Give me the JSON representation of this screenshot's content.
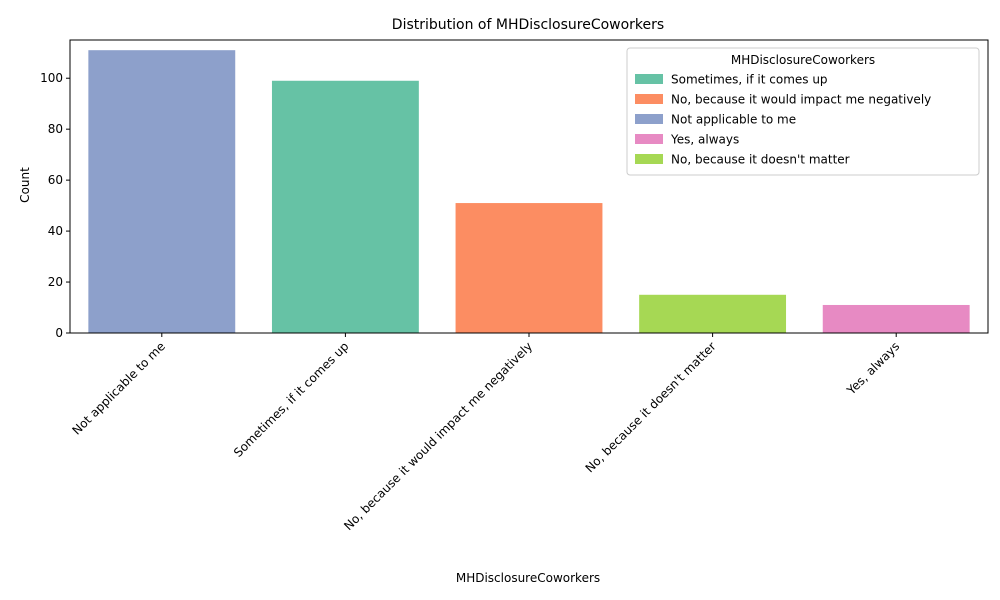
{
  "chart_data": {
    "type": "bar",
    "title": "Distribution of MHDisclosureCoworkers",
    "xlabel": "MHDisclosureCoworkers",
    "ylabel": "Count",
    "ylim": [
      0,
      115
    ],
    "yticks": [
      0,
      20,
      40,
      60,
      80,
      100
    ],
    "categories": [
      "Not applicable to me",
      "Sometimes, if it comes up",
      "No, because it would impact me negatively",
      "No, because it doesn't matter",
      "Yes, always"
    ],
    "values": [
      111,
      99,
      51,
      15,
      11
    ],
    "colors": [
      "#8da0cb",
      "#66c2a5",
      "#fc8d62",
      "#a6d854",
      "#e78ac3"
    ],
    "grid": false,
    "legend": {
      "title": "MHDisclosureCoworkers",
      "placement": "top-right",
      "entries": [
        {
          "label": "Sometimes, if it comes up",
          "color": "#66c2a5"
        },
        {
          "label": "No, because it would impact me negatively",
          "color": "#fc8d62"
        },
        {
          "label": "Not applicable to me",
          "color": "#8da0cb"
        },
        {
          "label": "Yes, always",
          "color": "#e78ac3"
        },
        {
          "label": "No, because it doesn't matter",
          "color": "#a6d854"
        }
      ]
    }
  }
}
